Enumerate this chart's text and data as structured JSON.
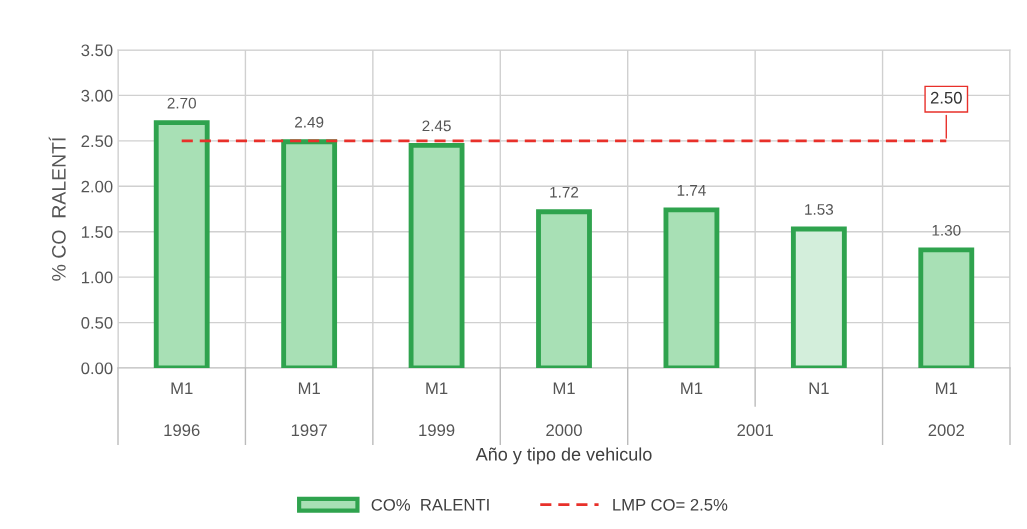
{
  "chart_data": {
    "type": "bar",
    "categories": [
      "M1",
      "M1",
      "M1",
      "M1",
      "M1",
      "N1",
      "M1"
    ],
    "series": [
      {
        "name": "CO%  RALENTI",
        "color": "#2fa34e",
        "colors": [
          "#a8e0b5",
          "#a8e0b5",
          "#a8e0b5",
          "#a8e0b5",
          "#a8e0b5",
          "#d3eedb",
          "#a8e0b5"
        ],
        "values": [
          2.7,
          2.49,
          2.45,
          1.72,
          1.74,
          1.53,
          1.3
        ],
        "value_labels": [
          "2.70",
          "2.49",
          "2.45",
          "1.72",
          "1.74",
          "1.53",
          "1.30"
        ]
      },
      {
        "name": "LMP CO= 2.5%",
        "type": "line",
        "color": "#e8302a",
        "line_style": "dashed",
        "marker": "none",
        "values": [
          2.5,
          2.5,
          2.5,
          2.5,
          2.5,
          2.5,
          2.5
        ],
        "value_labels": [
          null,
          null,
          null,
          null,
          null,
          null,
          "2.50"
        ]
      }
    ],
    "annotations": [
      "1996",
      "1997",
      "1999",
      "2000",
      "2001",
      "2002"
    ],
    "xlabel": "Año y tipo de vehiculo",
    "ylabel": "% CO  RALENTÍ",
    "ylim": [
      0,
      3.5
    ],
    "yticks": [
      {
        "value": 0,
        "label": "0.00"
      },
      {
        "value": 0.5,
        "label": "0.50"
      },
      {
        "value": 1,
        "label": "1.00"
      },
      {
        "value": 1.5,
        "label": "1.50"
      },
      {
        "value": 2,
        "label": "2.00"
      },
      {
        "value": 2.5,
        "label": "2.50"
      },
      {
        "value": 3,
        "label": "3.00"
      },
      {
        "value": 3.5,
        "label": "3.50"
      }
    ],
    "grid": true,
    "legend": "bottom"
  }
}
